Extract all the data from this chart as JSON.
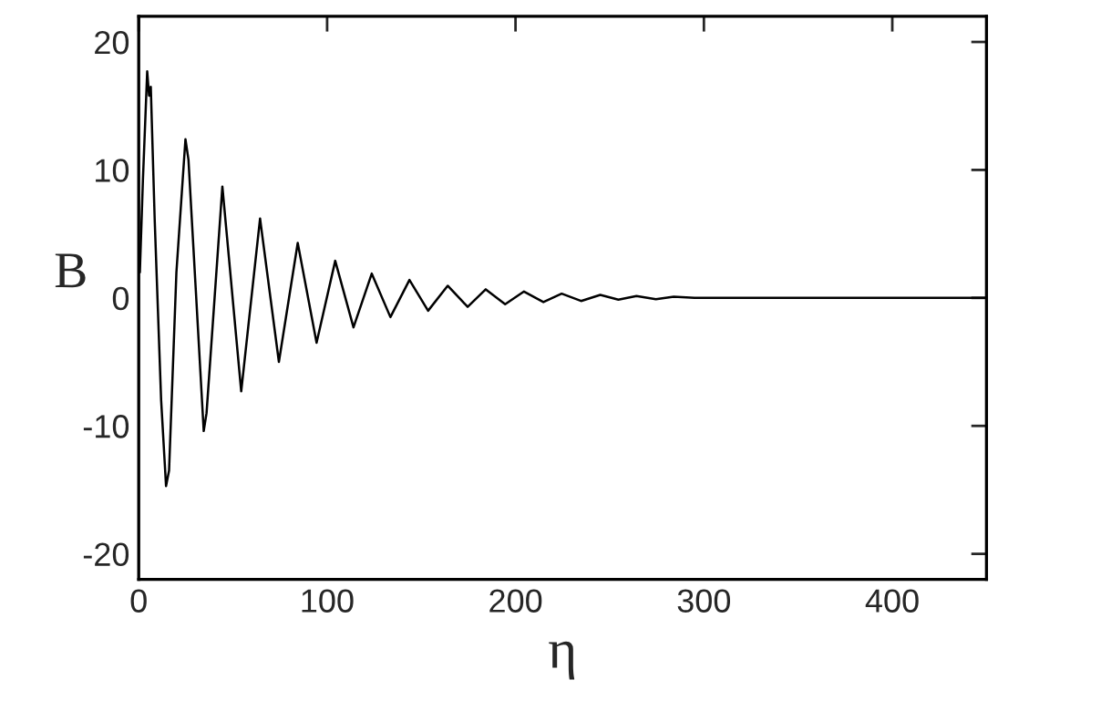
{
  "chart_data": {
    "type": "line",
    "xlabel": "η",
    "ylabel": "B",
    "xlim": [
      0,
      450
    ],
    "ylim": [
      -22,
      22
    ],
    "xticks": [
      0,
      100,
      200,
      300,
      400
    ],
    "yticks": [
      -20,
      -10,
      0,
      10,
      20
    ],
    "grid": false,
    "legend": false,
    "marker": "none",
    "line_style": "solid",
    "series": [
      {
        "color": "#000000",
        "x": [
          0.6,
          2.2,
          4.5,
          5.5,
          6.4,
          8.5,
          11.9,
          14.5,
          16.1,
          20,
          24.8,
          26.4,
          34.5,
          36,
          44.4,
          54.4,
          64.4,
          74.4,
          84.4,
          94.4,
          104.3,
          114,
          123.7,
          133.6,
          143.7,
          153.6,
          164,
          174.6,
          184.2,
          194.5,
          204.5,
          214.8,
          224.5,
          234.8,
          245,
          254.6,
          264.2,
          274.5,
          284,
          295,
          350,
          450
        ],
        "values": [
          2,
          9.1,
          17.7,
          15.8,
          16.5,
          6,
          -8,
          -14.7,
          -13.5,
          2,
          12.4,
          10.8,
          -10.4,
          -9,
          8.7,
          -7.3,
          6.2,
          -5.0,
          4.3,
          -3.5,
          2.9,
          -2.3,
          1.9,
          -1.5,
          1.4,
          -1.0,
          0.95,
          -0.7,
          0.67,
          -0.5,
          0.5,
          -0.33,
          0.33,
          -0.24,
          0.24,
          -0.14,
          0.15,
          -0.1,
          0.1,
          0,
          0,
          0
        ]
      }
    ]
  }
}
